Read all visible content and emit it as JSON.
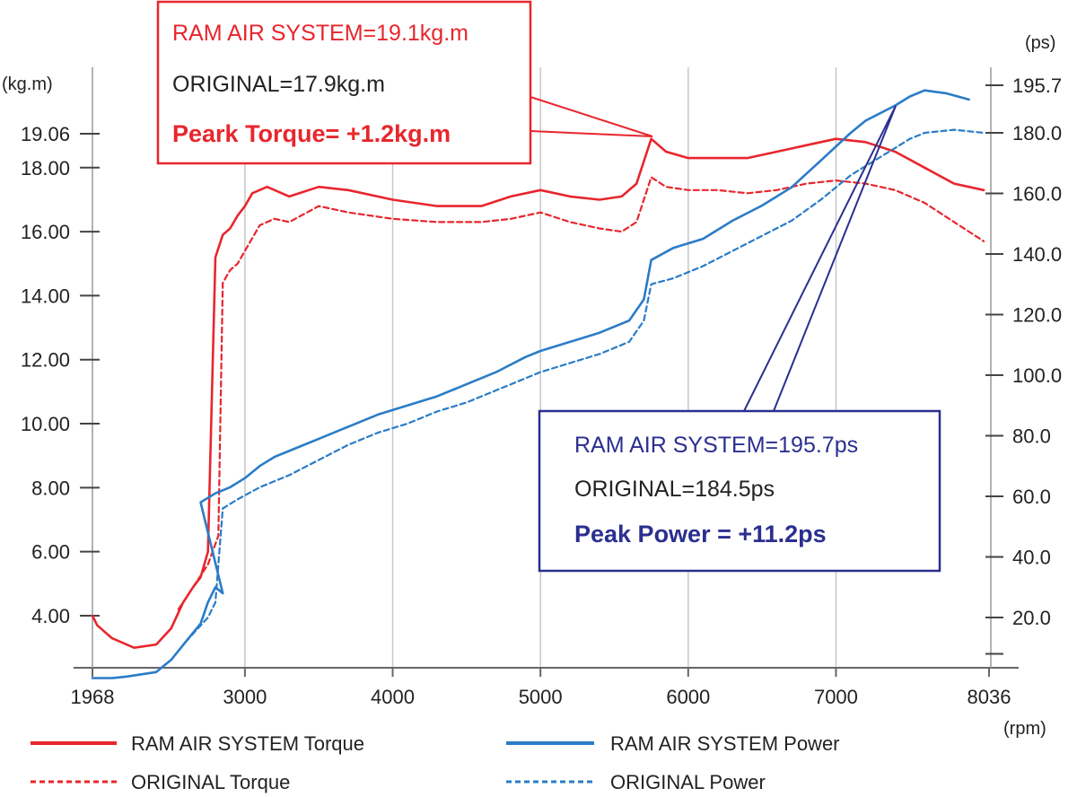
{
  "chart_data": {
    "type": "line",
    "x_unit": "(rpm)",
    "y_left_unit": "(kg.m)",
    "y_right_unit": "(ps)",
    "xlim": [
      1968,
      8036
    ],
    "ylim_left": [
      2.0,
      20.0
    ],
    "ylim_right": [
      -5,
      200
    ],
    "x_ticks": [
      {
        "value": 1968,
        "label": "1968"
      },
      {
        "value": 3000,
        "label": "3000"
      },
      {
        "value": 4000,
        "label": "4000"
      },
      {
        "value": 5000,
        "label": "5000"
      },
      {
        "value": 6000,
        "label": "6000"
      },
      {
        "value": 7000,
        "label": "7000"
      },
      {
        "value": 8036,
        "label": "8036"
      }
    ],
    "y_left_ticks": [
      {
        "value": 19.06,
        "label": "19.06"
      },
      {
        "value": 18.0,
        "label": "18.00"
      },
      {
        "value": 16.0,
        "label": "16.00"
      },
      {
        "value": 14.0,
        "label": "14.00"
      },
      {
        "value": 12.0,
        "label": "12.00"
      },
      {
        "value": 10.0,
        "label": "10.00"
      },
      {
        "value": 8.0,
        "label": "8.00"
      },
      {
        "value": 6.0,
        "label": "6.00"
      },
      {
        "value": 4.0,
        "label": "4.00"
      }
    ],
    "y_right_ticks": [
      {
        "value": 195.7,
        "label": "195.7"
      },
      {
        "value": 180.0,
        "label": "180.0"
      },
      {
        "value": 160.0,
        "label": "160.0"
      },
      {
        "value": 140.0,
        "label": "140.0"
      },
      {
        "value": 120.0,
        "label": "120.0"
      },
      {
        "value": 100.0,
        "label": "100.0"
      },
      {
        "value": 80.0,
        "label": "80.0"
      },
      {
        "value": 60.0,
        "label": "60.0"
      },
      {
        "value": 40.0,
        "label": "40.0"
      },
      {
        "value": 20.0,
        "label": "20.0"
      },
      {
        "value": 8.0,
        "label": ""
      }
    ],
    "grid_x": [
      3000,
      4000,
      5000,
      6000,
      7000
    ],
    "series": [
      {
        "name": "RAM AIR SYSTEM Torque",
        "axis": "left",
        "color": "#e8262d",
        "dash": false,
        "points": [
          [
            1968,
            4.0
          ],
          [
            2000,
            3.7
          ],
          [
            2100,
            3.3
          ],
          [
            2250,
            3.0
          ],
          [
            2400,
            3.1
          ],
          [
            2500,
            3.6
          ],
          [
            2580,
            4.4
          ],
          [
            2650,
            4.9
          ],
          [
            2700,
            5.2
          ],
          [
            2750,
            6.0
          ],
          [
            2800,
            15.2
          ],
          [
            2850,
            15.9
          ],
          [
            2900,
            16.1
          ],
          [
            2950,
            16.5
          ],
          [
            3000,
            16.8
          ],
          [
            3050,
            17.2
          ],
          [
            3150,
            17.4
          ],
          [
            3300,
            17.1
          ],
          [
            3500,
            17.4
          ],
          [
            3700,
            17.3
          ],
          [
            4000,
            17.0
          ],
          [
            4300,
            16.8
          ],
          [
            4600,
            16.8
          ],
          [
            4800,
            17.1
          ],
          [
            5000,
            17.3
          ],
          [
            5200,
            17.1
          ],
          [
            5400,
            17.0
          ],
          [
            5550,
            17.1
          ],
          [
            5650,
            17.5
          ],
          [
            5750,
            18.9
          ],
          [
            5850,
            18.5
          ],
          [
            6000,
            18.3
          ],
          [
            6200,
            18.3
          ],
          [
            6400,
            18.3
          ],
          [
            6600,
            18.5
          ],
          [
            6800,
            18.7
          ],
          [
            7000,
            18.9
          ],
          [
            7200,
            18.8
          ],
          [
            7400,
            18.5
          ],
          [
            7600,
            18.0
          ],
          [
            7800,
            17.5
          ],
          [
            8000,
            17.3
          ]
        ]
      },
      {
        "name": "ORIGINAL Torque",
        "axis": "left",
        "color": "#e8262d",
        "dash": true,
        "points": [
          [
            2550,
            4.2
          ],
          [
            2650,
            4.9
          ],
          [
            2750,
            5.6
          ],
          [
            2820,
            6.5
          ],
          [
            2850,
            14.4
          ],
          [
            2900,
            14.8
          ],
          [
            2950,
            15.0
          ],
          [
            3000,
            15.4
          ],
          [
            3100,
            16.2
          ],
          [
            3200,
            16.4
          ],
          [
            3300,
            16.3
          ],
          [
            3500,
            16.8
          ],
          [
            3700,
            16.6
          ],
          [
            4000,
            16.4
          ],
          [
            4300,
            16.3
          ],
          [
            4600,
            16.3
          ],
          [
            4800,
            16.4
          ],
          [
            5000,
            16.6
          ],
          [
            5200,
            16.3
          ],
          [
            5400,
            16.1
          ],
          [
            5550,
            16.0
          ],
          [
            5650,
            16.3
          ],
          [
            5750,
            17.7
          ],
          [
            5850,
            17.4
          ],
          [
            6000,
            17.3
          ],
          [
            6200,
            17.3
          ],
          [
            6400,
            17.2
          ],
          [
            6600,
            17.3
          ],
          [
            6800,
            17.5
          ],
          [
            7000,
            17.6
          ],
          [
            7200,
            17.5
          ],
          [
            7400,
            17.3
          ],
          [
            7600,
            16.9
          ],
          [
            7800,
            16.3
          ],
          [
            8000,
            15.7
          ]
        ]
      },
      {
        "name": "RAM AIR SYSTEM Power",
        "axis": "right",
        "color": "#2a7cc7",
        "dash": false,
        "points": [
          [
            1968,
            0
          ],
          [
            2100,
            0
          ],
          [
            2200,
            0.5
          ],
          [
            2400,
            2
          ],
          [
            2500,
            6
          ],
          [
            2600,
            12
          ],
          [
            2700,
            18
          ],
          [
            2750,
            25
          ],
          [
            2800,
            30
          ],
          [
            2850,
            28
          ],
          [
            2700,
            58
          ],
          [
            2800,
            61
          ],
          [
            2900,
            63
          ],
          [
            3000,
            66
          ],
          [
            3100,
            70
          ],
          [
            3200,
            73
          ],
          [
            3350,
            76
          ],
          [
            3500,
            79
          ],
          [
            3700,
            83
          ],
          [
            3900,
            87
          ],
          [
            4100,
            90
          ],
          [
            4300,
            93
          ],
          [
            4500,
            97
          ],
          [
            4700,
            101
          ],
          [
            4900,
            106
          ],
          [
            5000,
            108
          ],
          [
            5200,
            111
          ],
          [
            5400,
            114
          ],
          [
            5600,
            118
          ],
          [
            5700,
            125
          ],
          [
            5750,
            138
          ],
          [
            5900,
            142
          ],
          [
            6100,
            145
          ],
          [
            6300,
            151
          ],
          [
            6500,
            156
          ],
          [
            6700,
            162
          ],
          [
            6900,
            171
          ],
          [
            7100,
            180
          ],
          [
            7200,
            184
          ],
          [
            7400,
            189
          ],
          [
            7500,
            192
          ],
          [
            7600,
            194
          ],
          [
            7750,
            193
          ],
          [
            7900,
            191
          ]
        ]
      },
      {
        "name": "ORIGINAL Power",
        "axis": "right",
        "color": "#2a7cc7",
        "dash": true,
        "points": [
          [
            2600,
            12
          ],
          [
            2750,
            20
          ],
          [
            2800,
            25
          ],
          [
            2850,
            56
          ],
          [
            2950,
            59
          ],
          [
            3100,
            63
          ],
          [
            3300,
            67
          ],
          [
            3500,
            72
          ],
          [
            3700,
            77
          ],
          [
            3900,
            81
          ],
          [
            4100,
            84
          ],
          [
            4300,
            88
          ],
          [
            4500,
            91
          ],
          [
            4700,
            95
          ],
          [
            4900,
            99
          ],
          [
            5000,
            101
          ],
          [
            5200,
            104
          ],
          [
            5400,
            107
          ],
          [
            5600,
            111
          ],
          [
            5700,
            118
          ],
          [
            5750,
            130
          ],
          [
            5900,
            132
          ],
          [
            6100,
            136
          ],
          [
            6300,
            141
          ],
          [
            6500,
            146
          ],
          [
            6700,
            151
          ],
          [
            6900,
            158
          ],
          [
            7100,
            166
          ],
          [
            7300,
            172
          ],
          [
            7400,
            175
          ],
          [
            7500,
            178
          ],
          [
            7600,
            180
          ],
          [
            7800,
            181
          ],
          [
            8000,
            180
          ]
        ]
      }
    ],
    "legend": [
      {
        "label": "RAM AIR SYSTEM Torque",
        "color": "#e8262d",
        "dash": false
      },
      {
        "label": "RAM AIR SYSTEM Power",
        "color": "#2a7cc7",
        "dash": false
      },
      {
        "label": "ORIGINAL Torque",
        "color": "#e8262d",
        "dash": true
      },
      {
        "label": "ORIGINAL Power",
        "color": "#2a7cc7",
        "dash": true
      }
    ],
    "annotations": {
      "torque": {
        "line1": "RAM AIR SYSTEM=19.1kg.m",
        "line2": "ORIGINAL=17.9kg.m",
        "line3": "Peark Torque= +1.2kg.m",
        "color": "#e8262d"
      },
      "power": {
        "line1": "RAM AIR SYSTEM=195.7ps",
        "line2": "ORIGINAL=184.5ps",
        "line3": "Peak Power = +11.2ps",
        "color": "#2b2f8f"
      }
    }
  }
}
